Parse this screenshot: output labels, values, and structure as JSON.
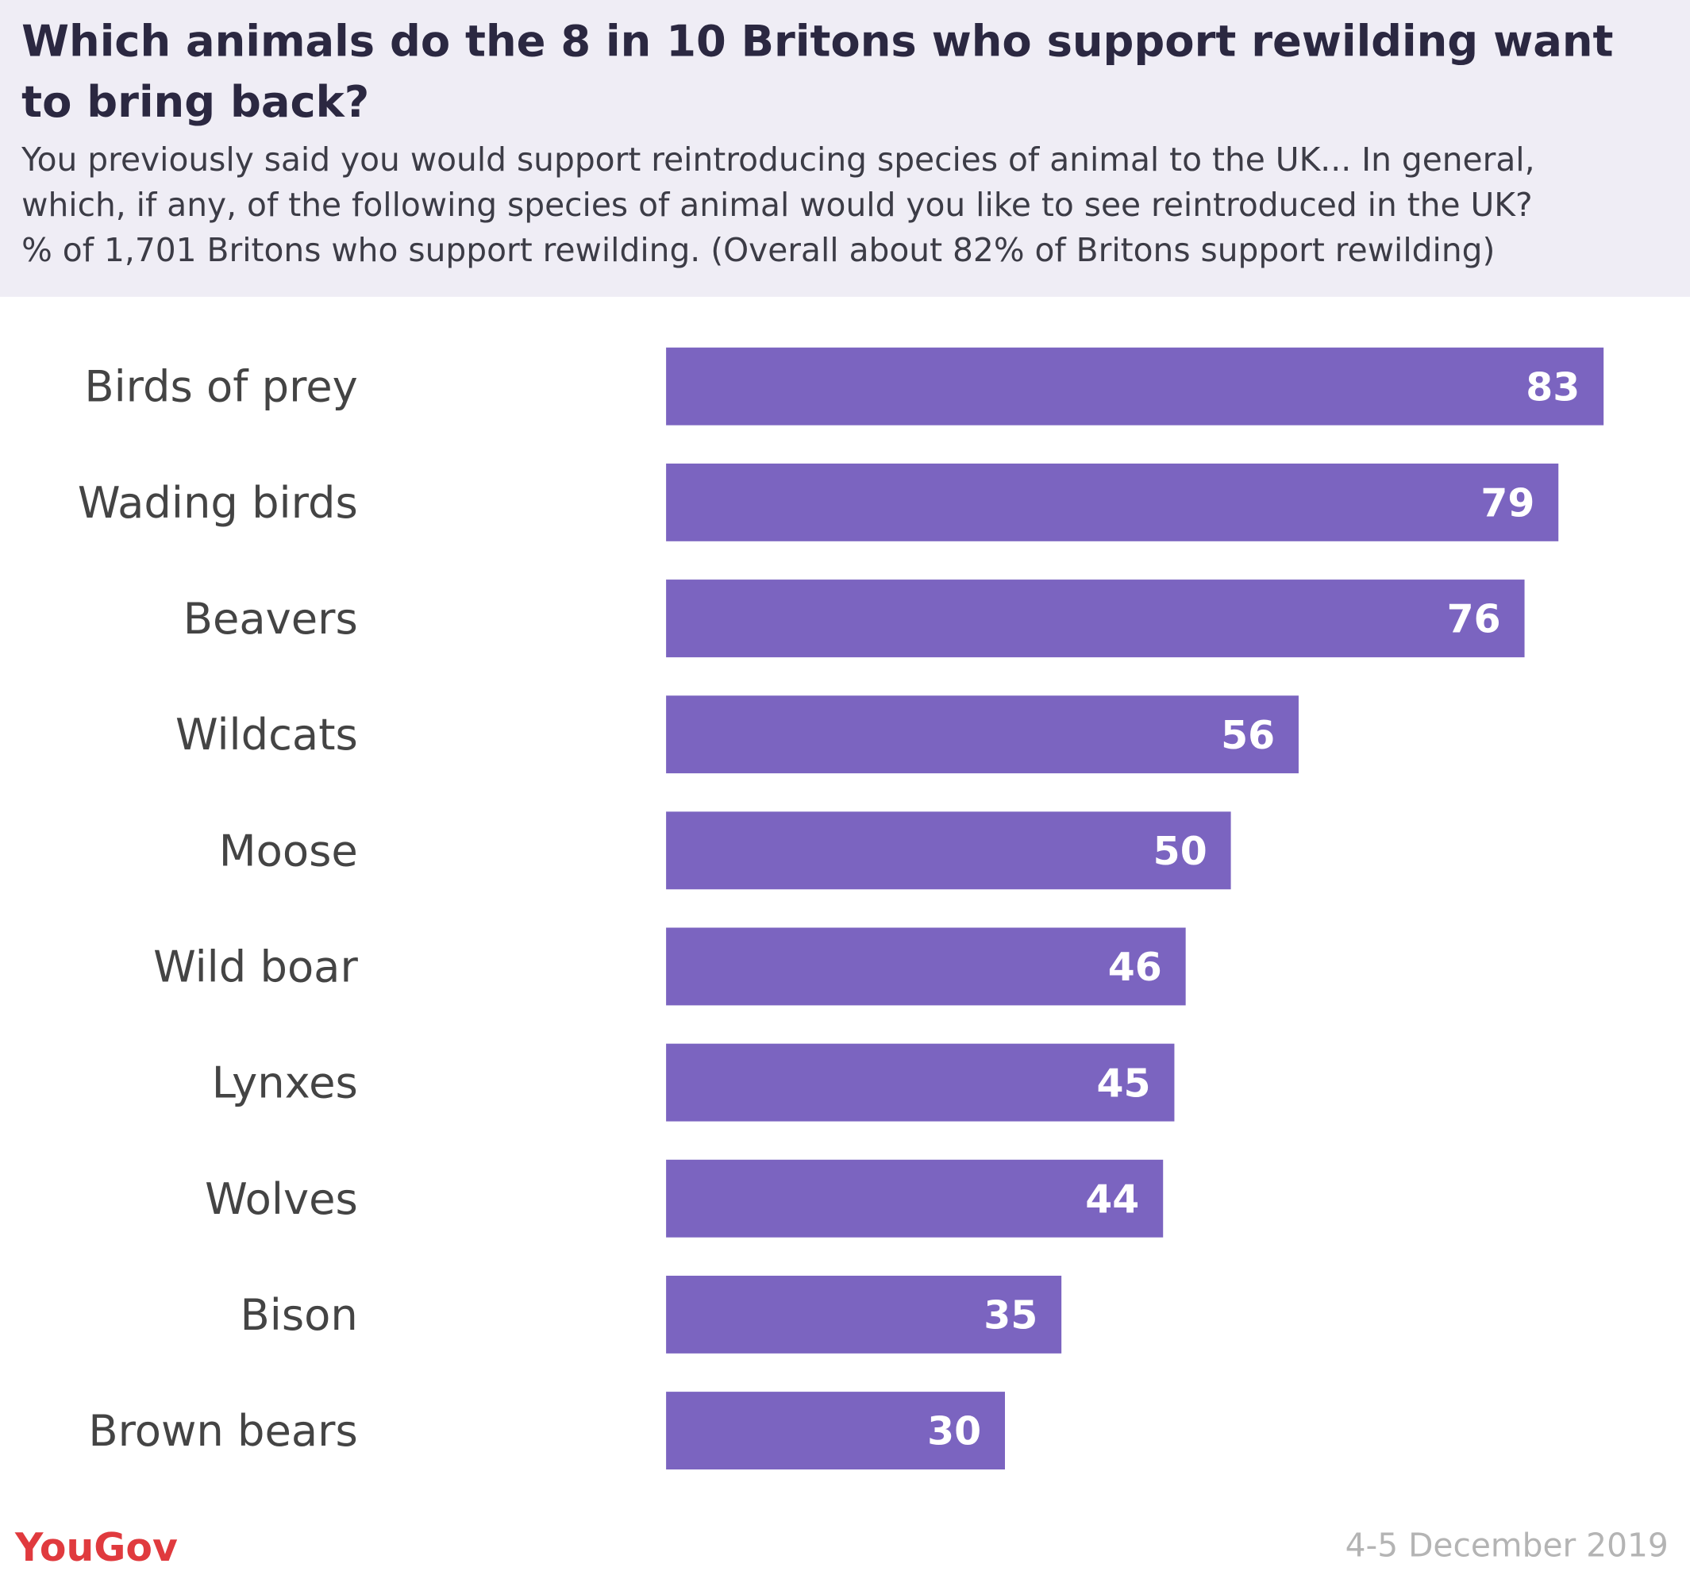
{
  "chart_data": {
    "type": "hbar",
    "title": [
      "Which animals do the 8 in 10 Britons who support rewilding want",
      "to bring back?"
    ],
    "subtitle": [
      "You previously said you would support reintroducing species of animal to the UK... In general,",
      "which, if any, of the following species of animal would you like to see reintroduced in the UK?",
      "% of 1,701 Britons who support rewilding. (Overall about 82% of Britons support rewilding)"
    ],
    "categories": [
      "Birds of prey",
      "Wading birds",
      "Beavers",
      "Wildcats",
      "Moose",
      "Wild boar",
      "Lynxes",
      "Wolves",
      "Bison",
      "Brown bears"
    ],
    "values": [
      83,
      79,
      76,
      56,
      50,
      46,
      45,
      44,
      35,
      30
    ],
    "color": "#7b64c0",
    "xlim": [
      0,
      100
    ],
    "source": "YouGov",
    "date": "4-5 December 2019"
  }
}
